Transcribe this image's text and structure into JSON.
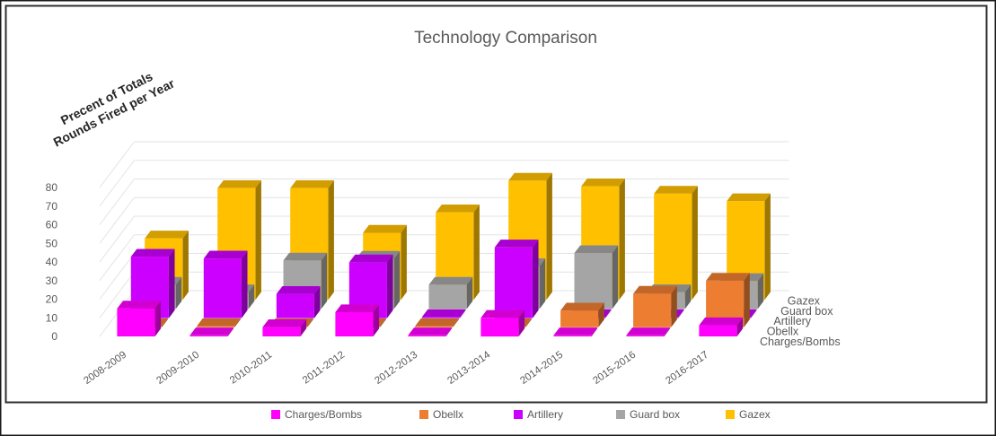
{
  "chart_data": {
    "type": "bar",
    "subtype": "3d-column",
    "title": "Technology  Comparison",
    "ylabel_lines": [
      "Precent  of Totals",
      "Rounds Fired per Year"
    ],
    "ylim": [
      0,
      80
    ],
    "yticks": [
      "0",
      "10",
      "20",
      "30",
      "40",
      "50",
      "60",
      "70",
      "80"
    ],
    "categories": [
      "2008-2009",
      "2009-2010",
      "2010-2011",
      "2011-2012",
      "2012-2013",
      "2013-2014",
      "2014-2015",
      "2015-2016",
      "2016-2017"
    ],
    "series": [
      {
        "name": "Charges/Bombs",
        "color": "#FF00FF",
        "values": [
          15,
          0,
          5,
          13,
          0,
          10,
          0,
          0,
          6
        ]
      },
      {
        "name": "Obellx",
        "color": "#ED7D31",
        "values": [
          0,
          0,
          0,
          0,
          0,
          0,
          9,
          18,
          25
        ]
      },
      {
        "name": "Artillery",
        "color": "#CC00FF",
        "values": [
          33,
          32,
          13,
          30,
          0,
          38,
          0,
          0,
          0
        ]
      },
      {
        "name": "Guard box",
        "color": "#A5A5A5",
        "values": [
          13,
          9,
          26,
          27,
          13,
          23,
          30,
          9,
          15
        ]
      },
      {
        "name": "Gazex",
        "color": "#FFC000",
        "values": [
          33,
          60,
          60,
          36,
          47,
          64,
          61,
          57,
          53
        ]
      }
    ],
    "grid": true,
    "legend": "bottom"
  }
}
